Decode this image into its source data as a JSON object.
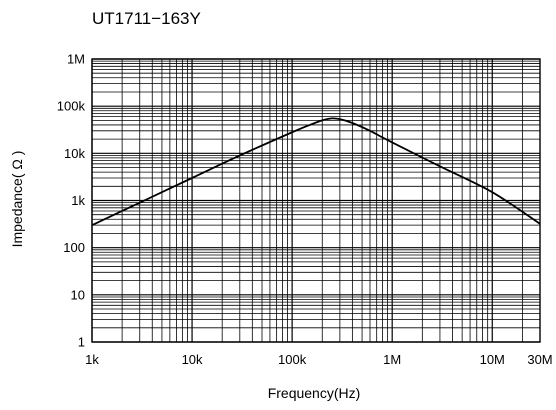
{
  "chart_data": {
    "type": "line",
    "title": "UT1711−163Y",
    "xlabel": "Frequency(Hz)",
    "ylabel": "Impedance( Ω )",
    "x_scale": "log",
    "y_scale": "log",
    "xlim": [
      1000,
      30000000
    ],
    "ylim": [
      1,
      1000000
    ],
    "x_ticks": [
      {
        "value": 1000,
        "label": "1k"
      },
      {
        "value": 10000,
        "label": "10k"
      },
      {
        "value": 100000,
        "label": "100k"
      },
      {
        "value": 1000000,
        "label": "1M"
      },
      {
        "value": 10000000,
        "label": "10M"
      },
      {
        "value": 30000000,
        "label": "30M"
      }
    ],
    "y_ticks": [
      {
        "value": 1,
        "label": "1"
      },
      {
        "value": 10,
        "label": "10"
      },
      {
        "value": 100,
        "label": "100"
      },
      {
        "value": 1000,
        "label": "1k"
      },
      {
        "value": 10000,
        "label": "10k"
      },
      {
        "value": 100000,
        "label": "100k"
      },
      {
        "value": 1000000,
        "label": "1M"
      }
    ],
    "grid": true,
    "series": [
      {
        "x": [
          1000,
          3000,
          10000,
          30000,
          100000,
          150000,
          200000,
          250000,
          300000,
          400000,
          600000,
          1000000,
          3000000,
          10000000,
          30000000
        ],
        "y": [
          300,
          900,
          3000,
          9000,
          28000,
          40000,
          50000,
          55000,
          53000,
          44000,
          30000,
          17000,
          5300,
          1500,
          320
        ]
      }
    ],
    "colors": {
      "line": "#000000",
      "grid": "#000000",
      "background": "#ffffff"
    }
  }
}
